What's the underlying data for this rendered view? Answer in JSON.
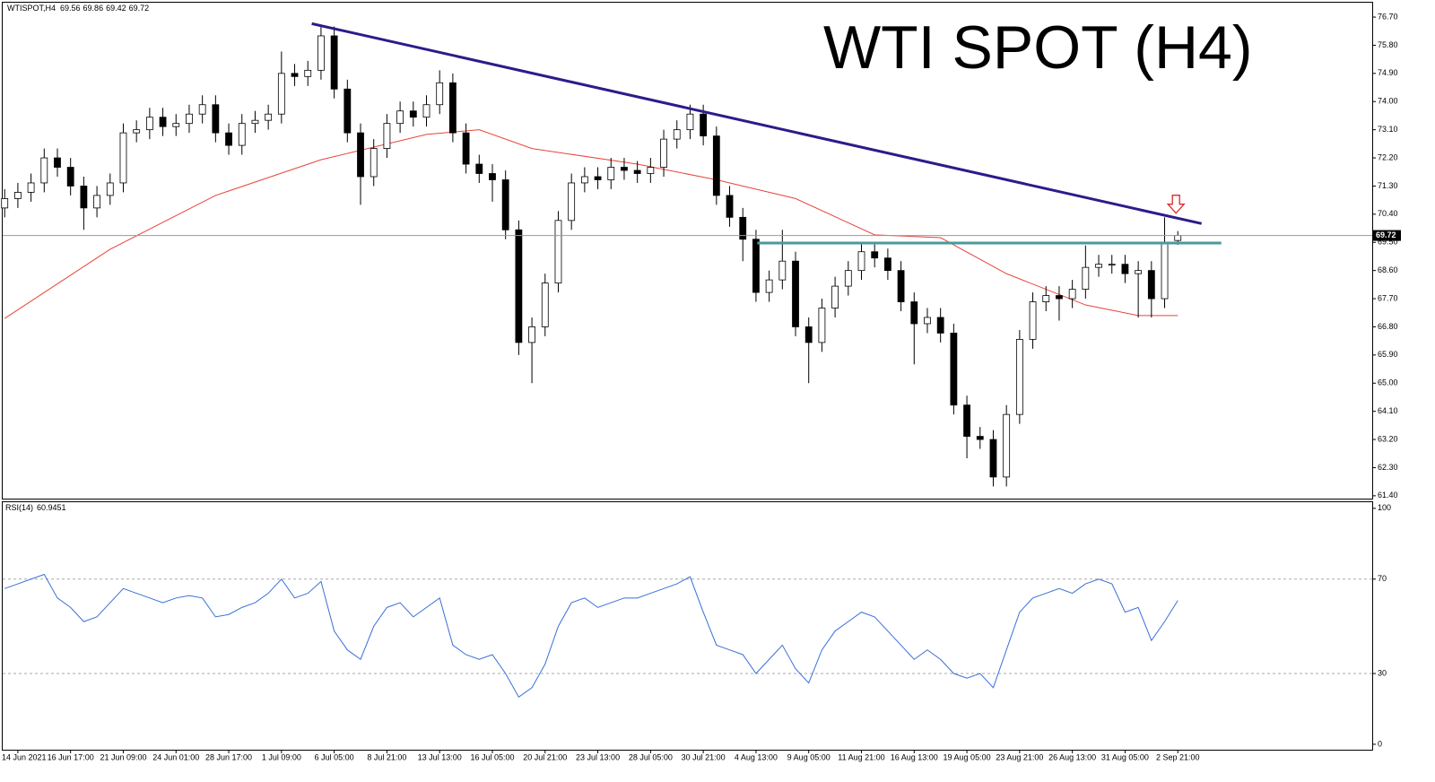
{
  "chart_data": [
    {
      "type": "candlestick",
      "symbol": "WTISPOT,H4",
      "title": "WTI SPOT (H4)",
      "xlim": [
        -0.15,
        103.75
      ],
      "ylim": [
        61.31,
        77.16
      ],
      "yticks": [
        {
          "value": 76.7,
          "label": "76.70"
        },
        {
          "value": 75.8,
          "label": "75.80"
        },
        {
          "value": 74.9,
          "label": "74.90"
        },
        {
          "value": 74.0,
          "label": "74.00"
        },
        {
          "value": 73.1,
          "label": "73.10"
        },
        {
          "value": 72.2,
          "label": "72.20"
        },
        {
          "value": 71.3,
          "label": "71.30"
        },
        {
          "value": 70.4,
          "label": "70.40"
        },
        {
          "value": 69.5,
          "label": "69.50"
        },
        {
          "value": 68.6,
          "label": "68.60"
        },
        {
          "value": 67.7,
          "label": "67.70"
        },
        {
          "value": 66.8,
          "label": "66.80"
        },
        {
          "value": 65.9,
          "label": "65.90"
        },
        {
          "value": 65.0,
          "label": "65.00"
        },
        {
          "value": 64.1,
          "label": "64.10"
        },
        {
          "value": 63.2,
          "label": "63.20"
        },
        {
          "value": 62.3,
          "label": "62.30"
        },
        {
          "value": 61.4,
          "label": "61.40"
        }
      ],
      "open": [
        70.6,
        70.9,
        71.1,
        71.4,
        72.2,
        71.9,
        71.3,
        70.6,
        71.0,
        71.4,
        73.0,
        73.1,
        73.5,
        73.2,
        73.3,
        73.6,
        73.9,
        73.0,
        72.6,
        73.3,
        73.4,
        73.6,
        74.9,
        74.8,
        75.0,
        76.1,
        74.4,
        73.0,
        71.6,
        72.5,
        73.3,
        73.7,
        73.5,
        73.9,
        74.6,
        73.0,
        72.0,
        71.7,
        71.5,
        69.9,
        66.3,
        66.8,
        68.2,
        70.2,
        71.4,
        71.6,
        71.5,
        71.9,
        71.8,
        71.7,
        71.9,
        72.8,
        73.1,
        73.6,
        72.9,
        71.0,
        70.3,
        69.6,
        67.9,
        68.3,
        68.9,
        66.8,
        66.3,
        67.4,
        68.1,
        68.6,
        69.2,
        69.0,
        68.6,
        67.6,
        66.9,
        67.1,
        66.6,
        64.3,
        63.3,
        63.2,
        62.0,
        64.0,
        66.4,
        67.6,
        67.8,
        67.7,
        68.0,
        68.7,
        68.8,
        68.8,
        68.5,
        68.6,
        67.7,
        69.56
      ],
      "high": [
        71.2,
        71.4,
        71.7,
        72.5,
        72.5,
        72.2,
        71.6,
        71.3,
        71.7,
        73.3,
        73.4,
        73.8,
        73.8,
        73.6,
        73.9,
        74.2,
        74.2,
        73.3,
        73.6,
        73.7,
        73.9,
        75.6,
        75.2,
        75.3,
        76.4,
        76.4,
        74.7,
        73.3,
        72.8,
        73.6,
        74.0,
        74.0,
        74.2,
        75.0,
        74.9,
        73.3,
        72.3,
        72.0,
        71.8,
        70.2,
        67.1,
        68.5,
        70.5,
        71.7,
        71.9,
        71.9,
        72.2,
        72.2,
        72.1,
        72.2,
        73.1,
        73.4,
        73.9,
        73.9,
        73.2,
        71.3,
        70.6,
        69.9,
        68.6,
        69.9,
        69.2,
        67.1,
        67.7,
        68.4,
        68.9,
        69.5,
        69.5,
        69.3,
        68.9,
        67.9,
        67.4,
        67.4,
        66.9,
        64.6,
        63.6,
        63.5,
        64.3,
        66.7,
        67.9,
        68.1,
        68.1,
        68.3,
        69.4,
        69.1,
        69.1,
        69.1,
        68.9,
        68.9,
        70.3,
        69.86
      ],
      "low": [
        70.3,
        70.6,
        70.8,
        71.1,
        71.6,
        71.0,
        69.9,
        70.3,
        70.7,
        71.1,
        72.7,
        72.8,
        72.9,
        72.9,
        73.0,
        73.3,
        72.7,
        72.3,
        72.3,
        73.0,
        73.1,
        73.3,
        74.5,
        74.5,
        74.7,
        74.1,
        72.7,
        70.7,
        71.3,
        72.2,
        73.0,
        73.2,
        73.2,
        73.6,
        72.7,
        71.7,
        71.4,
        70.8,
        69.6,
        65.9,
        65.0,
        66.5,
        67.9,
        69.9,
        71.1,
        71.2,
        71.2,
        71.5,
        71.4,
        71.4,
        71.6,
        72.5,
        72.8,
        72.6,
        70.7,
        70.0,
        68.9,
        67.6,
        67.6,
        68.0,
        66.5,
        65.0,
        66.0,
        67.1,
        67.8,
        68.3,
        68.7,
        68.3,
        67.3,
        65.6,
        66.6,
        66.3,
        64.0,
        62.6,
        62.9,
        61.7,
        61.7,
        63.7,
        66.1,
        67.3,
        67.0,
        67.4,
        67.7,
        68.4,
        68.5,
        68.2,
        67.1,
        67.1,
        67.4,
        69.42
      ],
      "close": [
        70.9,
        71.1,
        71.4,
        72.2,
        71.9,
        71.3,
        70.6,
        71.0,
        71.4,
        73.0,
        73.1,
        73.5,
        73.2,
        73.3,
        73.6,
        73.9,
        73.0,
        72.6,
        73.3,
        73.4,
        73.6,
        74.9,
        74.8,
        75.0,
        76.1,
        74.4,
        73.0,
        71.6,
        72.5,
        73.3,
        73.7,
        73.5,
        73.9,
        74.6,
        73.0,
        72.0,
        71.7,
        71.5,
        69.9,
        66.3,
        66.8,
        68.2,
        70.2,
        71.4,
        71.6,
        71.5,
        71.9,
        71.8,
        71.7,
        71.9,
        72.8,
        73.1,
        73.6,
        72.9,
        71.0,
        70.3,
        69.6,
        67.9,
        68.3,
        68.9,
        66.8,
        66.3,
        67.4,
        68.1,
        68.6,
        69.2,
        69.0,
        68.6,
        67.6,
        66.9,
        67.1,
        66.6,
        64.3,
        63.3,
        63.2,
        62.0,
        64.0,
        66.4,
        67.6,
        67.8,
        67.7,
        68.0,
        68.7,
        68.8,
        68.8,
        68.5,
        68.6,
        67.7,
        69.5,
        69.72
      ],
      "up_color": "#ffffff",
      "down_color": "#000000",
      "ma": {
        "color": "#e8443a",
        "x": [
          0,
          8,
          16,
          24,
          32,
          36,
          40,
          48,
          54,
          60,
          66,
          71,
          76,
          82,
          86,
          89
        ],
        "values": [
          67.07,
          69.28,
          71.0,
          72.14,
          72.95,
          73.1,
          72.5,
          72.0,
          71.5,
          70.9,
          69.74,
          69.65,
          68.5,
          67.5,
          67.16,
          67.16
        ]
      },
      "trendline": {
        "color": "#2e1a8a",
        "x": [
          23.3,
          90.8
        ],
        "values": [
          76.49,
          70.1
        ]
      },
      "support": {
        "color": "#4a9a9a",
        "x": [
          57.1,
          92.3
        ],
        "values": [
          69.48,
          69.48
        ]
      }
    },
    {
      "type": "line",
      "indicator": "RSI(14)",
      "color": "#3a6fd8",
      "xlim": [
        -0.15,
        103.75
      ],
      "ylim": [
        -2.3,
        102.6
      ],
      "yticks": [
        100,
        70,
        30,
        0
      ],
      "levels": [
        70,
        30
      ],
      "xticks": [
        {
          "value": 1,
          "label": "14 Jun 2021"
        },
        {
          "value": 5,
          "label": "16 Jun 17:00"
        },
        {
          "value": 9,
          "label": "21 Jun 09:00"
        },
        {
          "value": 13,
          "label": "24 Jun 01:00"
        },
        {
          "value": 17,
          "label": "28 Jun 17:00"
        },
        {
          "value": 21,
          "label": "1 Jul 09:00"
        },
        {
          "value": 25,
          "label": "6 Jul 05:00"
        },
        {
          "value": 29,
          "label": "8 Jul 21:00"
        },
        {
          "value": 33,
          "label": "13 Jul 13:00"
        },
        {
          "value": 37,
          "label": "16 Jul 05:00"
        },
        {
          "value": 41,
          "label": "20 Jul 21:00"
        },
        {
          "value": 45,
          "label": "23 Jul 13:00"
        },
        {
          "value": 49,
          "label": "28 Jul 05:00"
        },
        {
          "value": 53,
          "label": "30 Jul 21:00"
        },
        {
          "value": 57,
          "label": "4 Aug 13:00"
        },
        {
          "value": 61,
          "label": "9 Aug 05:00"
        },
        {
          "value": 65,
          "label": "11 Aug 21:00"
        },
        {
          "value": 69,
          "label": "16 Aug 13:00"
        },
        {
          "value": 73,
          "label": "19 Aug 05:00"
        },
        {
          "value": 77,
          "label": "23 Aug 21:00"
        },
        {
          "value": 81,
          "label": "26 Aug 13:00"
        },
        {
          "value": 85,
          "label": "31 Aug 05:00"
        },
        {
          "value": 89,
          "label": "2 Sep 21:00"
        }
      ],
      "values": [
        66,
        68,
        70,
        72,
        62,
        58,
        52,
        54,
        60,
        66,
        64,
        62,
        60,
        62,
        63,
        62,
        54,
        55,
        58,
        60,
        64,
        70,
        62,
        64,
        69,
        48,
        40,
        36,
        50,
        58,
        60,
        54,
        58,
        62,
        42,
        38,
        36,
        38,
        30,
        20,
        24,
        34,
        50,
        60,
        62,
        58,
        60,
        62,
        62,
        64,
        66,
        68,
        71,
        56,
        42,
        40,
        38,
        30,
        36,
        42,
        32,
        26,
        40,
        48,
        52,
        56,
        54,
        48,
        42,
        36,
        40,
        36,
        30,
        28,
        30,
        24,
        40,
        56,
        62,
        64,
        66,
        64,
        68,
        70,
        68,
        56,
        58,
        44,
        52,
        60.9451
      ]
    }
  ]
}
